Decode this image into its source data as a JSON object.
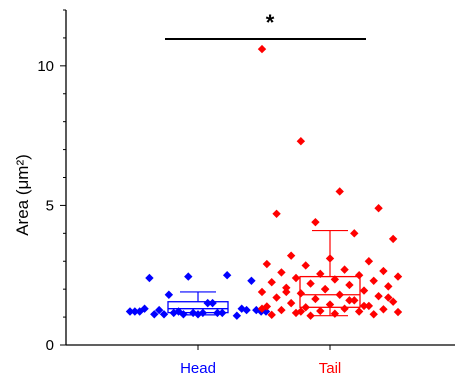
{
  "chart_data": {
    "type": "box-scatter",
    "ylabel": "Area (μm²)",
    "xlabel": "",
    "ylim": [
      0,
      12
    ],
    "yticks": [
      0,
      5,
      10
    ],
    "categories": [
      "Head",
      "Tail"
    ],
    "significance": "*",
    "grid": false,
    "legend": "none",
    "series": [
      {
        "category": "Head",
        "color": "#0000ff",
        "box": {
          "q1": 1.16,
          "median": 1.3,
          "q3": 1.55,
          "whisker_low": 1.08,
          "whisker_high": 1.9
        },
        "points": [
          1.2,
          1.8,
          1.5,
          1.25,
          1.3,
          1.1,
          1.15,
          1.2,
          1.25,
          1.1,
          1.05,
          1.2,
          1.15,
          1.5,
          2.3,
          2.4,
          2.45,
          2.5,
          1.2,
          1.1,
          1.15,
          1.3,
          1.2,
          1.2,
          1.15,
          1.25,
          1.1,
          1.15
        ]
      },
      {
        "category": "Tail",
        "color": "#ff0000",
        "box": {
          "q1": 1.35,
          "median": 1.8,
          "q3": 2.45,
          "whisker_low": 1.05,
          "whisker_high": 4.1
        },
        "points": [
          10.6,
          7.3,
          5.5,
          4.9,
          4.7,
          4.4,
          4.0,
          3.8,
          3.2,
          3.1,
          3.0,
          2.9,
          2.85,
          2.7,
          2.65,
          2.6,
          2.55,
          2.5,
          2.45,
          2.4,
          2.35,
          2.3,
          2.25,
          2.2,
          2.15,
          2.1,
          2.05,
          2.0,
          1.95,
          1.9,
          1.85,
          1.8,
          1.75,
          1.7,
          1.65,
          1.6,
          1.55,
          1.5,
          1.45,
          1.4,
          1.38,
          1.35,
          1.3,
          1.28,
          1.25,
          1.22,
          1.2,
          1.18,
          1.15,
          1.12,
          1.1,
          1.08,
          1.05,
          1.6,
          1.7,
          1.9,
          2.0,
          1.4,
          1.3,
          1.2
        ]
      }
    ]
  }
}
